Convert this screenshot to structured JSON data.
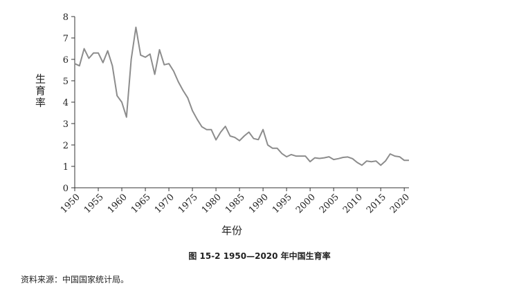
{
  "figure": {
    "caption": "图 15-2   1950—2020 年中国生育率",
    "source": "资料来源：中国国家统计局。"
  },
  "chart_data": {
    "type": "line",
    "xlabel": "年份",
    "ylabel": "生育率",
    "xlim": [
      1950,
      2021
    ],
    "ylim": [
      0,
      8
    ],
    "x_ticks": [
      1950,
      1955,
      1960,
      1965,
      1970,
      1975,
      1980,
      1985,
      1990,
      1995,
      2000,
      2005,
      2010,
      2015,
      2020
    ],
    "y_ticks": [
      0,
      1,
      2,
      3,
      4,
      5,
      6,
      7,
      8
    ],
    "grid": false,
    "line_color": "#8c8c8c",
    "series": [
      {
        "x": [
          1950,
          1951,
          1952,
          1953,
          1954,
          1955,
          1956,
          1957,
          1958,
          1959,
          1960,
          1961,
          1962,
          1963,
          1964,
          1965,
          1966,
          1967,
          1968,
          1969,
          1970,
          1971,
          1972,
          1973,
          1974,
          1975,
          1976,
          1977,
          1978,
          1979,
          1980,
          1981,
          1982,
          1983,
          1984,
          1985,
          1986,
          1987,
          1988,
          1989,
          1990,
          1991,
          1992,
          1993,
          1994,
          1995,
          1996,
          1997,
          1998,
          1999,
          2000,
          2001,
          2002,
          2003,
          2004,
          2005,
          2006,
          2007,
          2008,
          2009,
          2010,
          2011,
          2012,
          2013,
          2014,
          2015,
          2016,
          2017,
          2018,
          2019,
          2020,
          2021
        ],
        "y": [
          5.8,
          5.7,
          6.5,
          6.05,
          6.3,
          6.3,
          5.85,
          6.4,
          5.7,
          4.3,
          4.0,
          3.3,
          6.0,
          7.5,
          6.2,
          6.1,
          6.25,
          5.3,
          6.45,
          5.75,
          5.8,
          5.45,
          4.95,
          4.55,
          4.2,
          3.6,
          3.2,
          2.85,
          2.72,
          2.72,
          2.24,
          2.6,
          2.87,
          2.42,
          2.35,
          2.2,
          2.42,
          2.6,
          2.3,
          2.25,
          2.72,
          2.0,
          1.85,
          1.85,
          1.6,
          1.45,
          1.55,
          1.48,
          1.48,
          1.48,
          1.22,
          1.4,
          1.37,
          1.4,
          1.45,
          1.32,
          1.36,
          1.42,
          1.44,
          1.36,
          1.18,
          1.05,
          1.25,
          1.22,
          1.25,
          1.05,
          1.25,
          1.58,
          1.48,
          1.45,
          1.28,
          1.28
        ]
      }
    ]
  }
}
